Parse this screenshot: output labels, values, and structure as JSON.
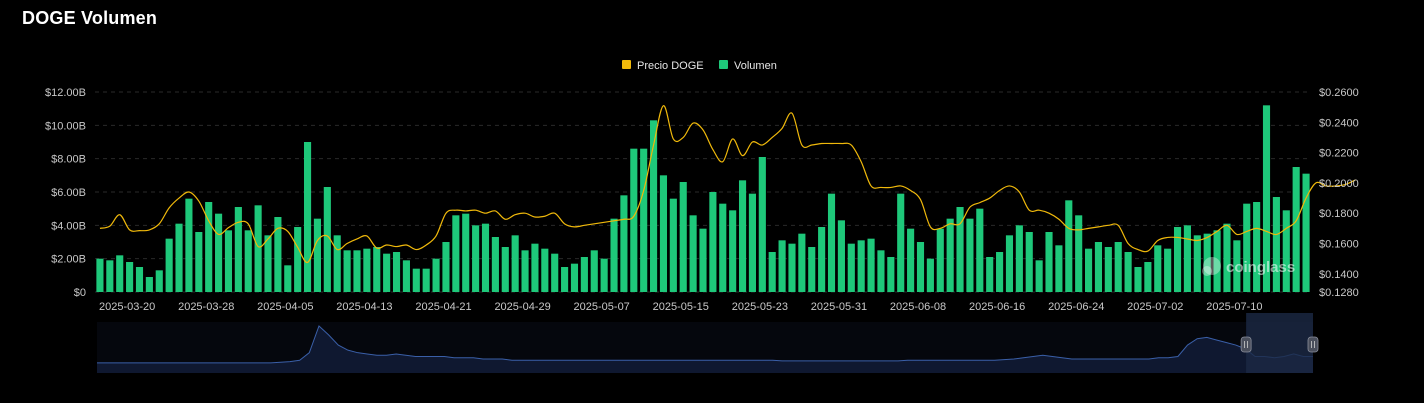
{
  "title": "DOGE Volumen",
  "watermark": "coinglass",
  "colors": {
    "price": "#f0b90b",
    "volume": "#1ec87a",
    "grid": "#2a2a2a",
    "navigator_line": "#3a5fa8",
    "navigator_fill": "#0f1830",
    "navigator_window": "#1c2945"
  },
  "chart_data": {
    "type": "bar",
    "legend": {
      "placement": "top-center"
    },
    "series": [
      {
        "name": "Precio DOGE",
        "type": "line",
        "axis": "right",
        "values": [
          0.17,
          0.1715,
          0.179,
          0.169,
          0.1685,
          0.169,
          0.173,
          0.1835,
          0.19,
          0.194,
          0.188,
          0.175,
          0.166,
          0.1705,
          0.174,
          0.173,
          0.158,
          0.163,
          0.17,
          0.168,
          0.1575,
          0.1475,
          0.162,
          0.165,
          0.156,
          0.16,
          0.163,
          0.165,
          0.157,
          0.159,
          0.158,
          0.159,
          0.156,
          0.159,
          0.165,
          0.18,
          0.182,
          0.1815,
          0.182,
          0.18,
          0.1815,
          0.176,
          0.179,
          0.18,
          0.1775,
          0.178,
          0.18,
          0.173,
          0.171,
          0.172,
          0.173,
          0.174,
          0.175,
          0.176,
          0.178,
          0.195,
          0.225,
          0.251,
          0.229,
          0.23,
          0.2395,
          0.235,
          0.222,
          0.214,
          0.229,
          0.218,
          0.227,
          0.225,
          0.23,
          0.236,
          0.246,
          0.225,
          0.225,
          0.226,
          0.226,
          0.226,
          0.225,
          0.214,
          0.198,
          0.197,
          0.197,
          0.198,
          0.195,
          0.189,
          0.171,
          0.17,
          0.173,
          0.173,
          0.184,
          0.187,
          0.19,
          0.195,
          0.198,
          0.194,
          0.182,
          0.182,
          0.18,
          0.176,
          0.17,
          0.169,
          0.17,
          0.171,
          0.172,
          0.172,
          0.16,
          0.156,
          0.155,
          0.162,
          0.164,
          0.164,
          0.163,
          0.162,
          0.164,
          0.168,
          0.172,
          0.166,
          0.168,
          0.17,
          0.168,
          0.166,
          0.17,
          0.175,
          0.19,
          0.2,
          0.198,
          0.198,
          0.199,
          0.202
        ]
      },
      {
        "name": "Volumen",
        "type": "bar",
        "axis": "left",
        "values": [
          2.0,
          1.9,
          2.2,
          1.8,
          1.5,
          0.9,
          1.3,
          3.2,
          4.1,
          5.6,
          3.6,
          5.4,
          4.7,
          3.7,
          5.1,
          3.7,
          5.2,
          3.4,
          4.5,
          1.6,
          3.9,
          9.0,
          4.4,
          6.3,
          3.4,
          2.5,
          2.5,
          2.6,
          2.7,
          2.3,
          2.4,
          1.9,
          1.4,
          1.4,
          2.0,
          3.0,
          4.6,
          4.7,
          4.0,
          4.1,
          3.3,
          2.7,
          3.4,
          2.5,
          2.9,
          2.6,
          2.3,
          1.5,
          1.7,
          2.1,
          2.5,
          2.0,
          4.4,
          5.8,
          8.6,
          8.6,
          10.3,
          7.0,
          5.6,
          6.6,
          4.6,
          3.8,
          6.0,
          5.3,
          4.9,
          6.7,
          5.9,
          8.1,
          2.4,
          3.1,
          2.9,
          3.5,
          2.7,
          3.9,
          5.9,
          4.3,
          2.9,
          3.1,
          3.2,
          2.5,
          2.1,
          5.9,
          3.8,
          3.0,
          2.0,
          3.8,
          4.4,
          5.1,
          4.4,
          5.0,
          2.1,
          2.4,
          3.4,
          4.0,
          3.6,
          1.9,
          3.6,
          2.8,
          5.5,
          4.6,
          2.6,
          3.0,
          2.7,
          3.0,
          2.4,
          1.5,
          1.8,
          2.8,
          2.6,
          3.9,
          4.0,
          3.4,
          3.5,
          3.7,
          4.1,
          3.1,
          5.3,
          5.4,
          11.2,
          5.7,
          4.9,
          7.5,
          7.1
        ]
      }
    ],
    "x_tick_labels": [
      "2025-03-20",
      "2025-03-28",
      "2025-04-05",
      "2025-04-13",
      "2025-04-21",
      "2025-04-29",
      "2025-05-07",
      "2025-05-15",
      "2025-05-23",
      "2025-05-31",
      "2025-06-08",
      "2025-06-16",
      "2025-06-24",
      "2025-07-02",
      "2025-07-10"
    ],
    "y_left": {
      "ylim": [
        0,
        12
      ],
      "tick_labels": [
        "$0",
        "$2.00B",
        "$4.00B",
        "$6.00B",
        "$8.00B",
        "$10.00B",
        "$12.00B"
      ]
    },
    "y_right": {
      "ylim": [
        0.128,
        0.26
      ],
      "ticks": [
        0.128,
        0.14,
        0.16,
        0.18,
        0.2,
        0.22,
        0.24,
        0.26
      ],
      "tick_labels": [
        "$0.1280",
        "$0.1400",
        "$0.1600",
        "$0.1800",
        "$0.2000",
        "$0.2200",
        "$0.2400",
        "$0.2600"
      ]
    },
    "grid": true,
    "navigator": {
      "values": [
        0.8,
        0.8,
        0.8,
        0.8,
        0.8,
        0.8,
        0.8,
        0.8,
        0.8,
        0.8,
        0.8,
        0.8,
        0.8,
        0.8,
        0.8,
        0.8,
        0.8,
        0.8,
        0.8,
        0.85,
        0.9,
        1.0,
        1.6,
        3.7,
        3.0,
        2.2,
        1.8,
        1.6,
        1.5,
        1.4,
        1.4,
        1.5,
        1.4,
        1.3,
        1.3,
        1.3,
        1.3,
        1.2,
        1.2,
        1.2,
        1.1,
        1.1,
        1.1,
        1.0,
        1.0,
        1.0,
        1.0,
        1.0,
        1.0,
        1.0,
        1.0,
        1.0,
        1.0,
        1.0,
        1.0,
        1.0,
        1.0,
        1.0,
        1.0,
        1.0,
        1.0,
        1.0,
        1.0,
        1.0,
        1.0,
        1.0,
        1.0,
        1.0,
        1.0,
        1.0,
        1.0,
        0.95,
        0.95,
        0.95,
        0.95,
        0.95,
        0.95,
        0.95,
        0.95,
        0.95,
        0.95,
        0.95,
        0.95,
        0.95,
        1.0,
        1.0,
        1.0,
        1.0,
        1.0,
        1.0,
        1.0,
        1.0,
        1.0,
        1.0,
        1.05,
        1.1,
        1.2,
        1.3,
        1.4,
        1.3,
        1.2,
        1.1,
        1.1,
        1.1,
        1.1,
        1.1,
        1.1,
        1.1,
        1.1,
        1.1,
        1.2,
        1.2,
        1.3,
        2.2,
        2.7,
        2.8,
        2.6,
        2.4,
        2.2,
        1.9,
        1.3,
        1.3,
        1.2,
        1.3,
        1.5,
        1.3,
        1.3
      ],
      "selection": [
        0.945,
        1.0
      ]
    }
  }
}
